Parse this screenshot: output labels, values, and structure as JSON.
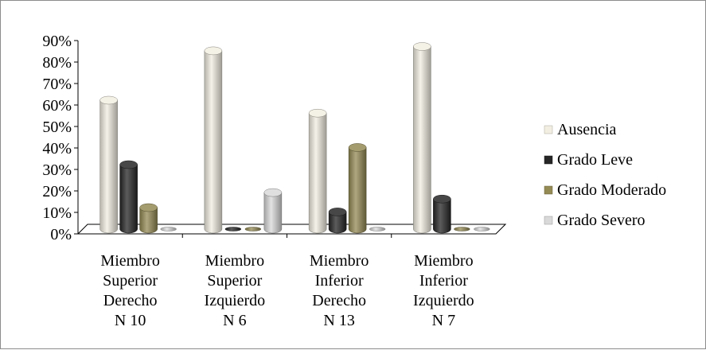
{
  "chart_data": {
    "type": "bar",
    "title": "",
    "xlabel": "",
    "ylabel": "",
    "ylim": [
      0,
      90
    ],
    "y_ticks": [
      "0%",
      "10%",
      "20%",
      "30%",
      "40%",
      "50%",
      "60%",
      "70%",
      "80%",
      "90%"
    ],
    "categories": [
      [
        "Miembro",
        "Superior",
        "Derecho",
        "N 10"
      ],
      [
        "Miembro",
        "Superior",
        "Izquierdo",
        "N 6"
      ],
      [
        "Miembro",
        "Inferior",
        "Derecho",
        "N 13"
      ],
      [
        "Miembro",
        "Inferior",
        "Izquierdo",
        "N 7"
      ]
    ],
    "series": [
      {
        "name": "Ausencia",
        "values": [
          60,
          83,
          54,
          85
        ],
        "color": "#f2efe2"
      },
      {
        "name": "Grado Leve",
        "values": [
          30,
          0,
          8,
          14
        ],
        "color": "#262626"
      },
      {
        "name": "Grado Moderado",
        "values": [
          10,
          0,
          38,
          0
        ],
        "color": "#948a54"
      },
      {
        "name": "Grado Severo",
        "values": [
          0,
          17,
          0,
          0
        ],
        "color": "#d9d9d9"
      }
    ],
    "legend_position": "right",
    "grid": false,
    "style": "3d-cylinder"
  }
}
